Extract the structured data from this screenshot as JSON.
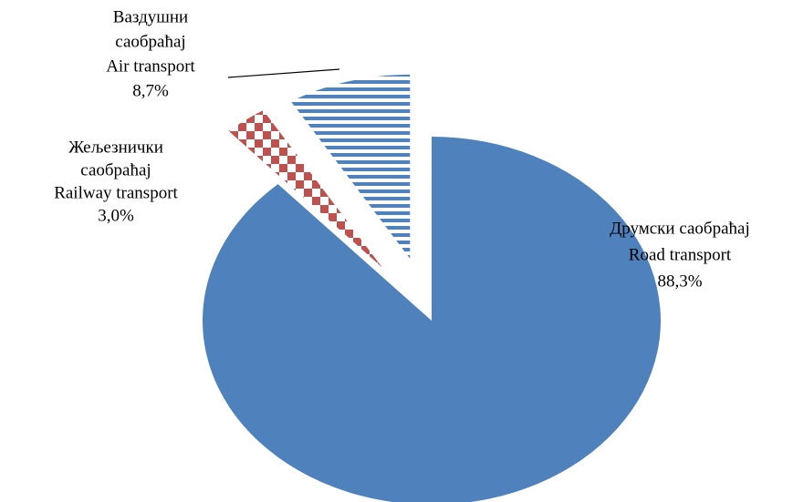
{
  "chart_data": {
    "type": "pie",
    "categories": [
      [
        "Друмски саобраћај",
        "Road transport"
      ],
      [
        "Жељезнички",
        "саобраћај",
        "Railway transport"
      ],
      [
        "Ваздушни",
        "саобраћај",
        "Air transport"
      ]
    ],
    "values": [
      88.3,
      3.0,
      8.7
    ],
    "value_labels": [
      "88,3%",
      "3,0%",
      "8,7%"
    ],
    "colors": [
      "#4f81bd",
      "#c0504d",
      "#4f81bd"
    ],
    "patterns": [
      "solid",
      "checker",
      "horizontal"
    ]
  }
}
